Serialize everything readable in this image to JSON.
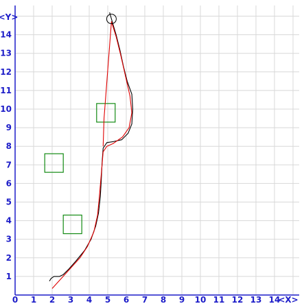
{
  "chart_data": {
    "type": "line",
    "title": "",
    "xlabel": "<X>",
    "ylabel": "<Y>",
    "xlim": [
      0,
      15
    ],
    "ylim": [
      0,
      15
    ],
    "grid": true,
    "x_ticks": [
      "0",
      "1",
      "2",
      "3",
      "4",
      "5",
      "6",
      "7",
      "8",
      "9",
      "10",
      "11",
      "12",
      "13",
      "14"
    ],
    "y_ticks": [
      "1",
      "2",
      "3",
      "4",
      "5",
      "6",
      "7",
      "8",
      "9",
      "10",
      "11",
      "12",
      "13",
      "14"
    ],
    "colors": {
      "grid": "#d8d8d8",
      "axes": "#1c1cc8",
      "path_black": "#000000",
      "path_red": "#e00000",
      "obstacles": "#138a13"
    },
    "series": [
      {
        "color": "#000000",
        "points": [
          [
            1.85,
            0.75
          ],
          [
            1.95,
            0.9
          ],
          [
            2.1,
            1.0
          ],
          [
            2.4,
            1.0
          ],
          [
            2.6,
            1.1
          ],
          [
            2.9,
            1.4
          ],
          [
            3.3,
            1.85
          ],
          [
            3.75,
            2.4
          ],
          [
            4.1,
            3.0
          ],
          [
            4.35,
            3.7
          ],
          [
            4.5,
            4.4
          ],
          [
            4.6,
            5.3
          ],
          [
            4.65,
            6.2
          ],
          [
            4.7,
            7.2
          ],
          [
            4.75,
            7.9
          ],
          [
            4.95,
            8.2
          ],
          [
            5.3,
            8.25
          ],
          [
            5.75,
            8.35
          ],
          [
            6.1,
            8.7
          ],
          [
            6.3,
            9.2
          ],
          [
            6.35,
            10.0
          ],
          [
            6.3,
            10.8
          ],
          [
            6.05,
            11.5
          ],
          [
            5.85,
            12.3
          ],
          [
            5.65,
            13.2
          ],
          [
            5.45,
            14.0
          ],
          [
            5.3,
            14.5
          ],
          [
            5.1,
            15.2
          ]
        ]
      },
      {
        "color": "#e00000",
        "points": [
          [
            2.0,
            0.35
          ],
          [
            2.5,
            0.9
          ],
          [
            3.0,
            1.45
          ],
          [
            3.5,
            2.0
          ],
          [
            3.9,
            2.6
          ],
          [
            4.25,
            3.4
          ],
          [
            4.45,
            4.3
          ],
          [
            4.55,
            5.3
          ],
          [
            4.65,
            6.5
          ],
          [
            4.75,
            7.7
          ],
          [
            4.95,
            8.0
          ],
          [
            5.3,
            8.15
          ],
          [
            5.8,
            8.5
          ],
          [
            6.15,
            9.0
          ],
          [
            6.3,
            9.8
          ],
          [
            6.2,
            10.7
          ],
          [
            5.95,
            11.8
          ],
          [
            5.7,
            12.9
          ],
          [
            5.45,
            13.9
          ],
          [
            5.2,
            14.7
          ],
          [
            4.8,
            9.5
          ],
          [
            4.75,
            8.0
          ]
        ]
      }
    ],
    "goal_circle": {
      "x": 5.2,
      "y": 14.85
    },
    "obstacles": [
      {
        "x": 1.6,
        "y": 6.6,
        "w": 1.0,
        "h": 1.0
      },
      {
        "x": 2.6,
        "y": 3.3,
        "w": 1.0,
        "h": 1.0
      },
      {
        "x": 4.4,
        "y": 9.3,
        "w": 1.0,
        "h": 1.0
      }
    ]
  }
}
